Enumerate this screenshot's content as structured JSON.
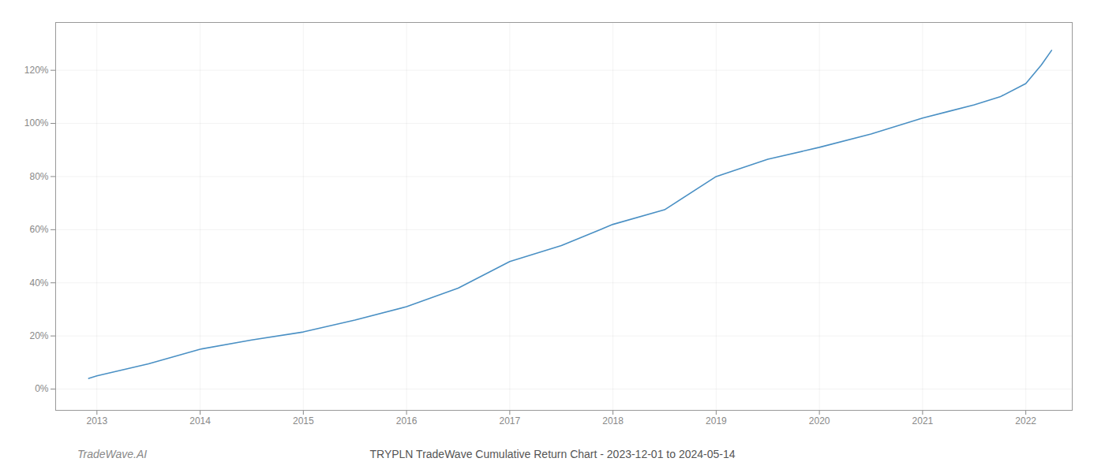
{
  "chart_data": {
    "type": "line",
    "title": "TRYPLN TradeWave Cumulative Return Chart - 2023-12-01 to 2024-05-14",
    "annotations": [
      "TradeWave.AI"
    ],
    "x": [
      2012.92,
      2013.0,
      2013.5,
      2014.0,
      2014.5,
      2015.0,
      2015.5,
      2016.0,
      2016.5,
      2017.0,
      2017.5,
      2018.0,
      2018.5,
      2019.0,
      2019.5,
      2020.0,
      2020.5,
      2021.0,
      2021.25,
      2021.5,
      2021.75,
      2022.0,
      2022.15,
      2022.25
    ],
    "values": [
      4.0,
      5.0,
      9.5,
      15.0,
      18.5,
      21.5,
      26.0,
      31.0,
      38.0,
      48.0,
      54.0,
      62.0,
      67.5,
      80.0,
      86.5,
      91.0,
      96.0,
      102.0,
      104.5,
      107.0,
      110.0,
      115.0,
      122.0,
      127.5
    ],
    "color": "#4a90c4",
    "xlim": [
      2012.6,
      2022.45
    ],
    "xticks": [
      2013,
      2014,
      2015,
      2016,
      2017,
      2018,
      2019,
      2020,
      2021,
      2022
    ],
    "ylim": [
      -8,
      138
    ],
    "yticks": [
      {
        "value": 0,
        "label": "0%"
      },
      {
        "value": 20,
        "label": "20%"
      },
      {
        "value": 40,
        "label": "40%"
      },
      {
        "value": 60,
        "label": "60%"
      },
      {
        "value": 80,
        "label": "80%"
      },
      {
        "value": 100,
        "label": "100%"
      },
      {
        "value": 120,
        "label": "120%"
      }
    ],
    "grid": true
  }
}
